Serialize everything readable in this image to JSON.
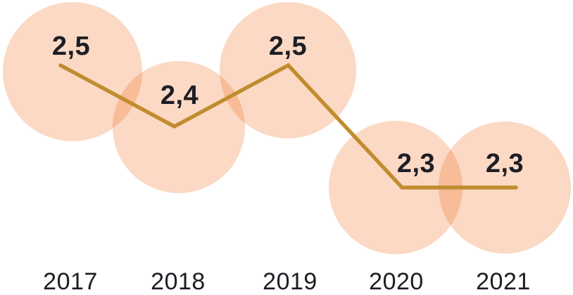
{
  "chart_data": {
    "type": "line",
    "title": "",
    "categories": [
      "2017",
      "2018",
      "2019",
      "2020",
      "2021"
    ],
    "values": [
      2.5,
      2.4,
      2.5,
      2.3,
      2.3
    ],
    "value_labels": [
      "2,5",
      "2,4",
      "2,5",
      "2,3",
      "2,3"
    ],
    "decimal_separator": ",",
    "xlabel": "",
    "ylabel": "",
    "ylim": [
      2.2,
      2.6
    ],
    "grid": false,
    "legend": "none",
    "axes_visible": false,
    "marker_style": "large-translucent-bubble",
    "colors": {
      "line": "#C18C2F",
      "bubble_fill": "rgba(239, 103, 19, 0.25)",
      "label_text": "#1D1E24",
      "background": "#FFFFFF"
    }
  }
}
